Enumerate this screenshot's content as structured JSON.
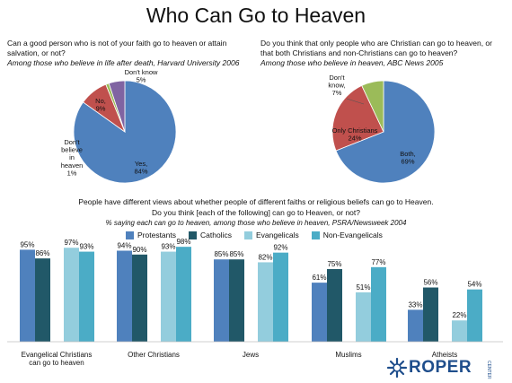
{
  "page": {
    "title": "Who Can Go to Heaven"
  },
  "colors": {
    "blue": "#4f81bd",
    "red": "#c0504d",
    "green": "#9bbb59",
    "purple": "#8064a2",
    "protestants": "#4f81bd",
    "catholics": "#215868",
    "evangelicals": "#93cddd",
    "non_evangelicals": "#4bacc6"
  },
  "pie_left": {
    "question": "Can a good person who is not of your faith go to heaven or attain salvation, or not?",
    "source": "Among those who believe in life after death, Harvard University 2006"
  },
  "pie_right": {
    "question": "Do you think that only people who are Christian can go to heaven, or that both Christians and non-Christians can go to heaven?",
    "source": "Among those who believe in heaven, ABC News 2005"
  },
  "bottom": {
    "question_line1": "People have different views about whether people of different faiths or religious beliefs can go to Heaven.",
    "question_line2": "Do you think [each of the following] can go to Heaven, or not?",
    "source": "% saying each can go to heaven, among those who believe in heaven, PSRA/Newsweek 2004"
  },
  "logo": {
    "text": "ROPER",
    "sub": "CENTER"
  },
  "chart_data": [
    {
      "type": "pie",
      "slices": [
        {
          "label_lines": [
            "Yes,",
            "84%"
          ],
          "value": 84,
          "color": "#4f81bd"
        },
        {
          "label_lines": [
            "No,",
            "9%"
          ],
          "value": 9,
          "color": "#c0504d"
        },
        {
          "label_lines": [
            "Don't",
            "believe",
            "in",
            "heaven",
            "1%"
          ],
          "value": 1,
          "color": "#9bbb59"
        },
        {
          "label_lines": [
            "Don't know",
            "5%"
          ],
          "value": 5,
          "color": "#8064a2"
        }
      ]
    },
    {
      "type": "pie",
      "slices": [
        {
          "label_lines": [
            "Both,",
            "69%"
          ],
          "value": 69,
          "color": "#4f81bd"
        },
        {
          "label_lines": [
            "Only Christians",
            "24%"
          ],
          "value": 24,
          "color": "#c0504d"
        },
        {
          "label_lines": [
            "Don't",
            "know,",
            "7%"
          ],
          "value": 7,
          "color": "#9bbb59"
        }
      ]
    },
    {
      "type": "bar",
      "categories": [
        "Evangelical Christians can go to heaven",
        "Other Christians",
        "Jews",
        "Muslims",
        "Atheists"
      ],
      "category_label_lines": [
        [
          "Evangelical Christians",
          "can go to heaven"
        ],
        [
          "Other Christians"
        ],
        [
          "Jews"
        ],
        [
          "Muslims"
        ],
        [
          "Atheists"
        ]
      ],
      "series": [
        {
          "name": "Protestants",
          "values": [
            95,
            94,
            85,
            61,
            33
          ],
          "color": "#4f81bd"
        },
        {
          "name": "Catholics",
          "values": [
            86,
            90,
            85,
            75,
            56
          ],
          "color": "#215868"
        },
        {
          "name": "Evangelicals",
          "values": [
            97,
            93,
            82,
            51,
            22
          ],
          "color": "#93cddd"
        },
        {
          "name": "Non-Evangelicals",
          "values": [
            93,
            98,
            92,
            77,
            54
          ],
          "color": "#4bacc6"
        }
      ],
      "value_suffix": "%",
      "ylim": [
        0,
        100
      ],
      "grid": false,
      "legend": "top"
    }
  ]
}
